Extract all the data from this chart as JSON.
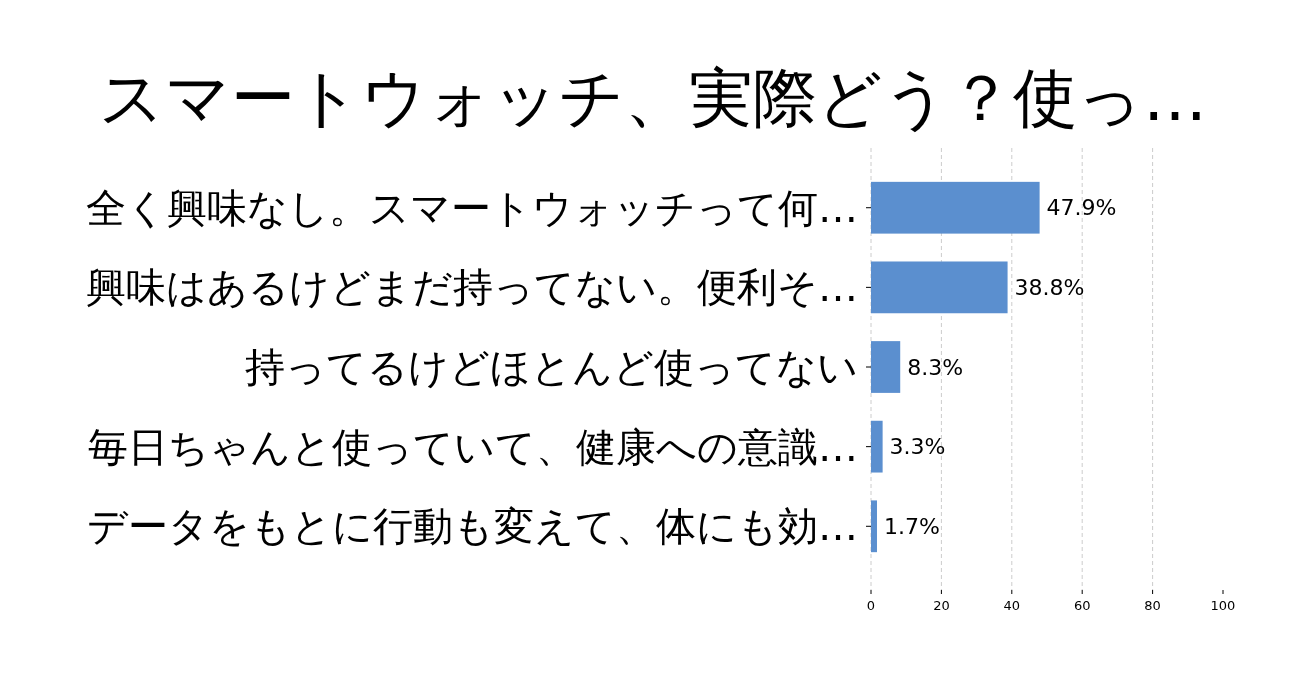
{
  "chart_data": {
    "type": "bar",
    "orientation": "horizontal",
    "title": "スマートウォッチ、実際どう？使っ…",
    "categories": [
      "全く興味なし。スマートウォッチって何…",
      "興味はあるけどまだ持ってない。便利そ…",
      "持ってるけどほとんど使ってない",
      "毎日ちゃんと使っていて、健康への意識…",
      "データをもとに行動も変えて、体にも効…"
    ],
    "values": [
      47.9,
      38.8,
      8.3,
      3.3,
      1.7
    ],
    "color": "#5b8fcf",
    "value_labels": [
      "47.9%",
      "38.8%",
      "8.3%",
      "3.3%",
      "1.7%"
    ],
    "xlim": [
      0,
      100
    ],
    "xticks": [
      0,
      20,
      40,
      60,
      80,
      100
    ],
    "grid": "x"
  }
}
